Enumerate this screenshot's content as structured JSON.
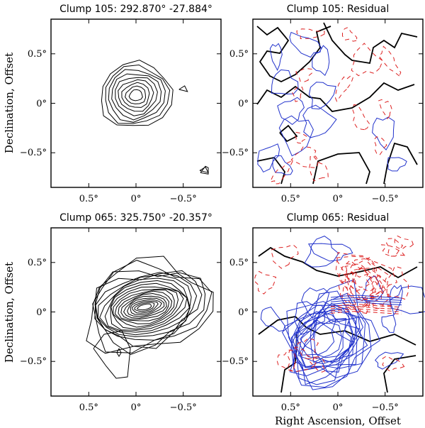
{
  "chart_data": [
    {
      "type": "contour",
      "title": "Clump 105: 292.870° -27.884°",
      "xlim": [
        0.9,
        -0.9
      ],
      "ylim": [
        -0.85,
        0.85
      ],
      "xticks": [
        0.5,
        0,
        -0.5
      ],
      "yticks": [
        0.5,
        0,
        -0.5
      ],
      "xtick_labels": [
        "0.5°",
        "0°",
        "−0.5°"
      ],
      "ytick_labels": [
        "0.5°",
        "0°",
        "−0.5°"
      ],
      "ylabel": "Declination,  Offset",
      "xlabel": "",
      "kind": "model",
      "contour_levels": 9,
      "components": [
        {
          "x": 0.0,
          "y": 0.08,
          "sx": 0.2,
          "sy": 0.17
        }
      ],
      "small_features": [
        {
          "x": -0.5,
          "y": 0.14
        },
        {
          "x": -0.72,
          "y": -0.68
        }
      ]
    },
    {
      "type": "contour",
      "title": "Clump 105: Residual",
      "xlim": [
        0.9,
        -0.9
      ],
      "ylim": [
        -0.85,
        0.85
      ],
      "xticks": [
        0.5,
        0,
        -0.5
      ],
      "yticks": [
        0.5,
        0,
        -0.5
      ],
      "xtick_labels": [
        "0.5°",
        "0°",
        "−0.5°"
      ],
      "ytick_labels": [
        "0.5°",
        "0°",
        "−0.5°"
      ],
      "xlabel": "",
      "ylabel": "",
      "kind": "residual",
      "contour_levels": {
        "zero": "black",
        "positive": "blue",
        "negative": "red dashed"
      }
    },
    {
      "type": "contour",
      "title": "Clump 065: 325.750° -20.357°",
      "xlim": [
        0.9,
        -0.9
      ],
      "ylim": [
        -0.85,
        0.85
      ],
      "xticks": [
        0.5,
        0,
        -0.5
      ],
      "yticks": [
        0.5,
        0,
        -0.5
      ],
      "xtick_labels": [
        "0.5°",
        "0°",
        "−0.5°"
      ],
      "ytick_labels": [
        "0.5°",
        "0°",
        "−0.5°"
      ],
      "ylabel": "Declination,  Offset",
      "xlabel": "",
      "kind": "model",
      "contour_levels": 20,
      "components": [
        {
          "x": -0.12,
          "y": 0.05,
          "sx": 0.42,
          "sy": 0.27
        }
      ]
    },
    {
      "type": "contour",
      "title": "Clump 065: Residual",
      "xlim": [
        0.9,
        -0.9
      ],
      "ylim": [
        -0.85,
        0.85
      ],
      "xticks": [
        0.5,
        0,
        -0.5
      ],
      "yticks": [
        0.5,
        0,
        -0.5
      ],
      "xtick_labels": [
        "0.5°",
        "0°",
        "−0.5°"
      ],
      "ytick_labels": [
        "0.5°",
        "0°",
        "−0.5°"
      ],
      "xlabel": "Right Ascension,  Offset",
      "ylabel": "",
      "kind": "residual",
      "contour_levels": {
        "zero": "black",
        "positive": "blue",
        "negative": "red dashed"
      }
    }
  ],
  "colors": {
    "positive": "#2233cc",
    "negative": "#dd2222",
    "zero": "#000000",
    "model": "#000000"
  }
}
